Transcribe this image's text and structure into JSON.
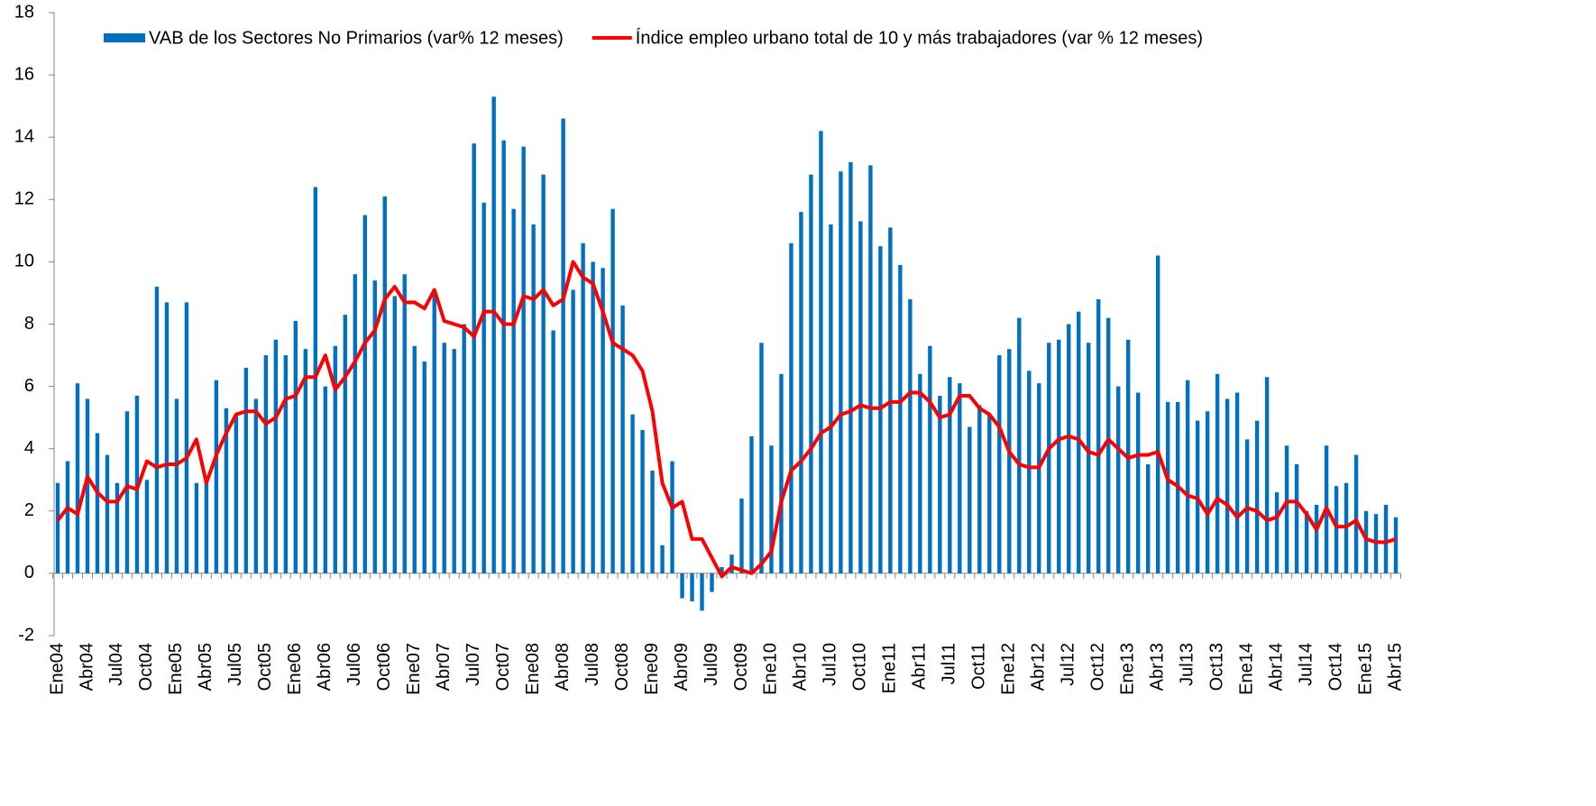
{
  "chart_data": {
    "type": "bar_line",
    "categories": [
      "Ene04",
      null,
      null,
      "Abr04",
      null,
      null,
      "Jul04",
      null,
      null,
      "Oct04",
      null,
      null,
      "Ene05",
      null,
      null,
      "Abr05",
      null,
      null,
      "Jul05",
      null,
      null,
      "Oct05",
      null,
      null,
      "Ene06",
      null,
      null,
      "Abr06",
      null,
      null,
      "Jul06",
      null,
      null,
      "Oct06",
      null,
      null,
      "Ene07",
      null,
      null,
      "Abr07",
      null,
      null,
      "Jul07",
      null,
      null,
      "Oct07",
      null,
      null,
      "Ene08",
      null,
      null,
      "Abr08",
      null,
      null,
      "Jul08",
      null,
      null,
      "Oct08",
      null,
      null,
      "Ene09",
      null,
      null,
      "Abr09",
      null,
      null,
      "Jul09",
      null,
      null,
      "Oct09",
      null,
      null,
      "Ene10",
      null,
      null,
      "Abr10",
      null,
      null,
      "Jul10",
      null,
      null,
      "Oct10",
      null,
      null,
      "Ene11",
      null,
      null,
      "Abr11",
      null,
      null,
      "Jul11",
      null,
      null,
      "Oct11",
      null,
      null,
      "Ene12",
      null,
      null,
      "Abr12",
      null,
      null,
      "Jul12",
      null,
      null,
      "Oct12",
      null,
      null,
      "Ene13",
      null,
      null,
      "Abr13",
      null,
      null,
      "Jul13",
      null,
      null,
      "Oct13",
      null,
      null,
      "Ene14",
      null,
      null,
      "Abr14",
      null,
      null,
      "Jul14",
      null,
      null,
      "Oct14",
      null,
      null,
      "Ene15",
      null,
      null,
      "Abr15"
    ],
    "series": [
      {
        "name": "VAB de los Sectores No Primarios (var% 12 meses)",
        "type": "bar",
        "color": "#0070c0",
        "values": [
          2.9,
          3.6,
          6.1,
          5.6,
          4.5,
          3.8,
          2.9,
          5.2,
          5.7,
          3.0,
          9.2,
          8.7,
          5.6,
          8.7,
          2.9,
          3.0,
          6.2,
          5.3,
          5.1,
          6.6,
          5.6,
          7.0,
          7.5,
          7.0,
          8.1,
          7.2,
          12.4,
          6.0,
          7.3,
          8.3,
          9.6,
          11.5,
          9.4,
          12.1,
          8.9,
          9.6,
          7.3,
          6.8,
          9.0,
          7.4,
          7.2,
          8.0,
          13.8,
          11.9,
          15.3,
          13.9,
          11.7,
          13.7,
          11.2,
          12.8,
          7.8,
          14.6,
          9.1,
          10.6,
          10.0,
          9.8,
          11.7,
          8.6,
          5.1,
          4.6,
          3.3,
          0.9,
          3.6,
          -0.8,
          -0.9,
          -1.2,
          -0.6,
          0.2,
          0.6,
          2.4,
          4.4,
          7.4,
          4.1,
          6.4,
          10.6,
          11.6,
          12.8,
          14.2,
          11.2,
          12.9,
          13.2,
          11.3,
          13.1,
          10.5,
          11.1,
          9.9,
          8.8,
          6.4,
          7.3,
          5.7,
          6.3,
          6.1,
          4.7,
          5.4,
          5.1,
          7.0,
          7.2,
          8.2,
          6.5,
          6.1,
          7.4,
          7.5,
          8.0,
          8.4,
          7.4,
          8.8,
          8.2,
          6.0,
          7.5,
          5.8,
          3.5,
          10.2,
          5.5,
          5.5,
          6.2,
          4.9,
          5.2,
          6.4,
          5.6,
          5.8,
          4.3,
          4.9,
          6.3,
          2.6,
          4.1,
          3.5,
          2.0,
          2.2,
          4.1,
          2.8,
          2.9,
          3.8,
          2.0,
          1.9,
          2.2,
          1.8
        ]
      },
      {
        "name": "Índice empleo urbano total de 10 y más trabajadores (var % 12 meses)",
        "type": "line",
        "color": "#ff0000",
        "values": [
          1.7,
          2.1,
          1.9,
          3.1,
          2.6,
          2.3,
          2.3,
          2.8,
          2.7,
          3.6,
          3.4,
          3.5,
          3.5,
          3.7,
          4.3,
          2.9,
          3.8,
          4.5,
          5.1,
          5.2,
          5.2,
          4.8,
          5.0,
          5.6,
          5.7,
          6.3,
          6.3,
          7.0,
          5.9,
          6.3,
          6.8,
          7.4,
          7.8,
          8.8,
          9.2,
          8.7,
          8.7,
          8.5,
          9.1,
          8.1,
          8.0,
          7.9,
          7.6,
          8.4,
          8.4,
          8.0,
          8.0,
          8.9,
          8.8,
          9.1,
          8.6,
          8.8,
          10.0,
          9.5,
          9.3,
          8.4,
          7.4,
          7.2,
          7.0,
          6.5,
          5.2,
          2.9,
          2.1,
          2.3,
          1.1,
          1.1,
          0.5,
          -0.1,
          0.2,
          0.1,
          0.0,
          0.3,
          0.7,
          2.3,
          3.3,
          3.6,
          4.0,
          4.5,
          4.7,
          5.1,
          5.2,
          5.4,
          5.3,
          5.3,
          5.5,
          5.5,
          5.8,
          5.8,
          5.5,
          5.0,
          5.1,
          5.7,
          5.7,
          5.3,
          5.1,
          4.7,
          3.9,
          3.5,
          3.4,
          3.4,
          4.0,
          4.3,
          4.4,
          4.3,
          3.9,
          3.8,
          4.3,
          4.0,
          3.7,
          3.8,
          3.8,
          3.9,
          3.0,
          2.8,
          2.5,
          2.4,
          1.9,
          2.4,
          2.2,
          1.8,
          2.1,
          2.0,
          1.7,
          1.8,
          2.3,
          2.3,
          1.9,
          1.4,
          2.1,
          1.5,
          1.5,
          1.7,
          1.1,
          1.0,
          1.0,
          1.1
        ]
      }
    ],
    "ylim": [
      -2,
      18
    ],
    "yticks": [
      -2,
      0,
      2,
      4,
      6,
      8,
      10,
      12,
      14,
      16,
      18
    ],
    "legend": "top"
  }
}
